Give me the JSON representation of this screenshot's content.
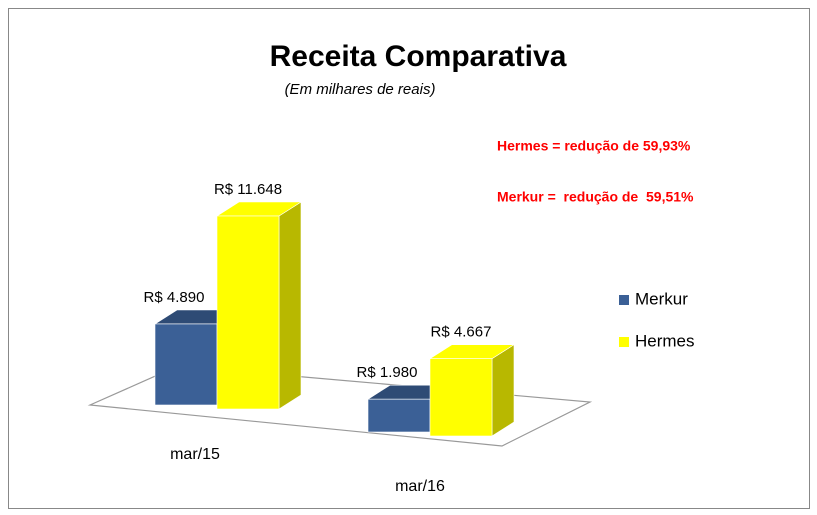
{
  "chart_data": {
    "type": "bar3d",
    "title": "Receita Comparativa",
    "subtitle": "(Em milhares de reais)",
    "annotations": [
      "Hermes = redução de 59,93%",
      "Merkur =  redução de  59,51%"
    ],
    "categories": [
      "mar/15",
      "mar/16"
    ],
    "series": [
      {
        "name": "Merkur",
        "color": "#3b6096",
        "values": [
          4890,
          1980
        ],
        "value_labels": [
          "R$ 4.890",
          "R$ 1.980"
        ]
      },
      {
        "name": "Hermes",
        "color": "#ffff00",
        "values": [
          11648,
          4667
        ],
        "value_labels": [
          "R$ 11.648",
          "R$ 4.667"
        ]
      }
    ],
    "legend": "right"
  }
}
